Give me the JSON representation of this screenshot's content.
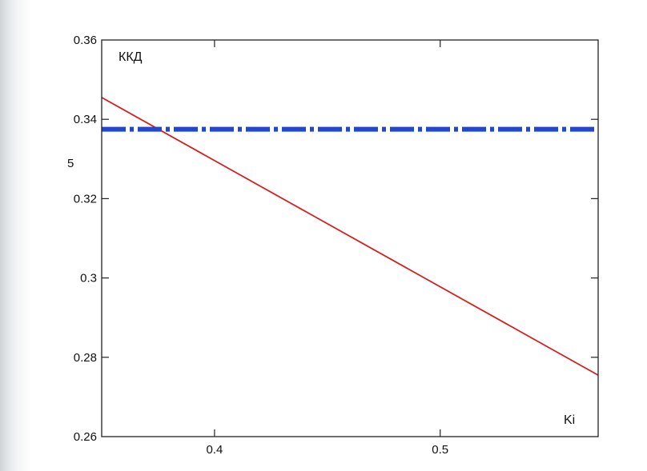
{
  "chart_data": {
    "type": "line",
    "title": "",
    "ylabel_top": "ККД",
    "ylabel_side": "5",
    "xlabel": "Ki",
    "xlim": [
      0.35,
      0.57
    ],
    "ylim": [
      0.26,
      0.36
    ],
    "xticks": [
      0.4,
      0.5
    ],
    "xtick_labels": [
      "0.4",
      "0.5"
    ],
    "yticks": [
      0.26,
      0.28,
      0.3,
      0.32,
      0.34,
      0.36
    ],
    "ytick_labels": [
      "0.26",
      "0.28",
      "0.3",
      "0.32",
      "0.34",
      "0.36"
    ],
    "grid": false,
    "series": [
      {
        "color": "#d42020",
        "style": "solid",
        "x": [
          0.35,
          0.57
        ],
        "y": [
          0.3455,
          0.2755
        ]
      },
      {
        "color": "#1f46d6",
        "style": "dash-dot",
        "x": [
          0.35,
          0.57
        ],
        "y": [
          0.3375,
          0.3375
        ]
      }
    ]
  }
}
